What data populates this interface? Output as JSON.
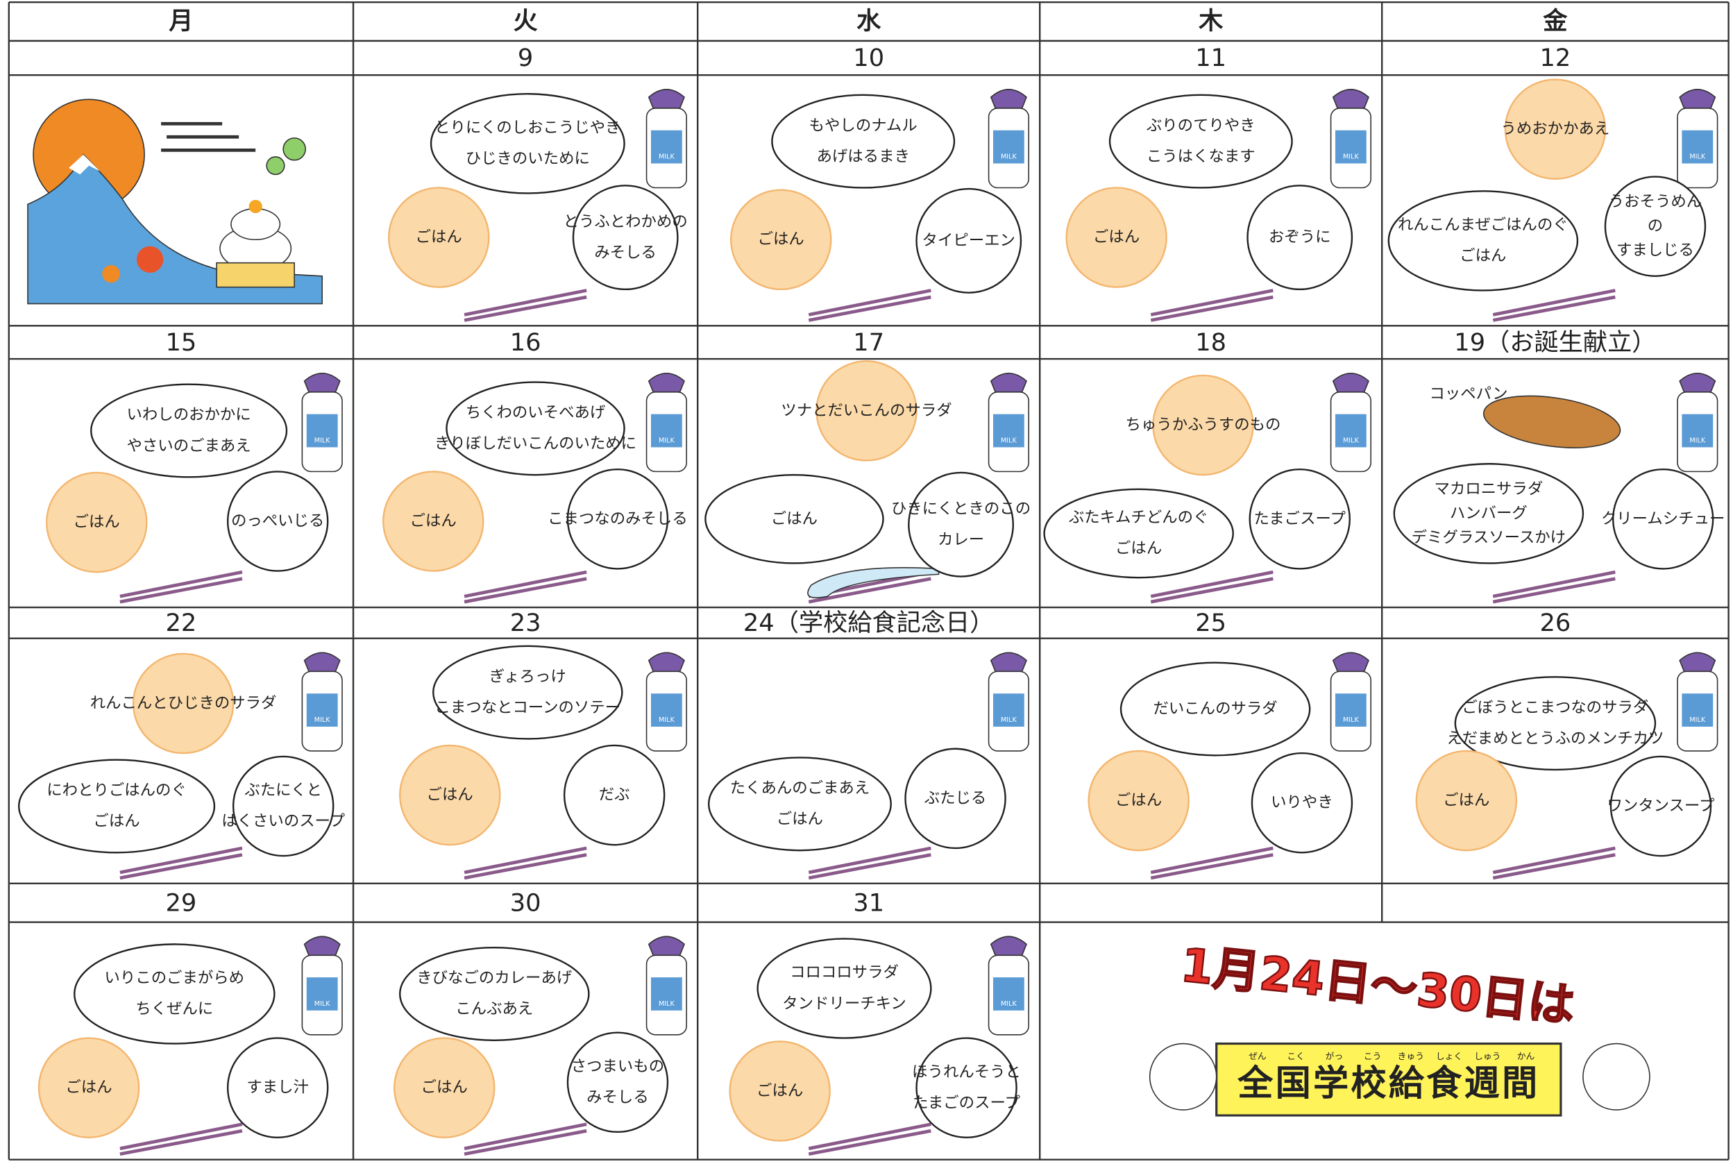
{
  "weekdays": [
    "月",
    "火",
    "水",
    "木",
    "金"
  ],
  "milk_label": "MILK",
  "weeks": [
    {
      "dates": [
        null,
        "9",
        "10",
        "11",
        "12"
      ],
      "cells": [
        null,
        {
          "items": [
            {
              "lines": [
                "とりにくのしおこうじやき",
                "ひじきのいために"
              ]
            },
            {
              "lines": [
                "ごはん"
              ]
            },
            {
              "lines": [
                "とうふとわかめの",
                "みそしる"
              ]
            }
          ]
        },
        {
          "items": [
            {
              "lines": [
                "もやしのナムル",
                "あげはるまき"
              ]
            },
            {
              "lines": [
                "ごはん"
              ]
            },
            {
              "lines": [
                "タイピーエン"
              ]
            }
          ]
        },
        {
          "items": [
            {
              "lines": [
                "ぶりのてりやき",
                "こうはくなます"
              ]
            },
            {
              "lines": [
                "ごはん"
              ]
            },
            {
              "lines": [
                "おぞうに"
              ]
            }
          ]
        },
        {
          "items": [
            {
              "lines": [
                "うめおかかあえ"
              ]
            },
            {
              "lines": [
                "れんこんまぜごはんのぐ",
                "ごはん"
              ]
            },
            {
              "lines": [
                "うおそうめん",
                "の",
                "すましじる"
              ]
            }
          ]
        }
      ]
    },
    {
      "dates": [
        "15",
        "16",
        "17",
        "18",
        "19（お誕生献立）"
      ],
      "cells": [
        {
          "items": [
            {
              "lines": [
                "いわしのおかかに",
                "やさいのごまあえ"
              ]
            },
            {
              "lines": [
                "ごはん"
              ]
            },
            {
              "lines": [
                "のっぺいじる"
              ]
            }
          ]
        },
        {
          "items": [
            {
              "lines": [
                "ちくわのいそべあげ",
                "きりぼしだいこんのいために"
              ]
            },
            {
              "lines": [
                "ごはん"
              ]
            },
            {
              "lines": [
                "こまつなのみそしる"
              ]
            }
          ]
        },
        {
          "items": [
            {
              "lines": [
                "ツナとだいこんのサラダ"
              ]
            },
            {
              "lines": [
                "ごはん"
              ]
            },
            {
              "lines": [
                "ひきにくときのこの",
                "カレー"
              ]
            }
          ]
        },
        {
          "items": [
            {
              "lines": [
                "ちゅうかふうすのもの"
              ]
            },
            {
              "lines": [
                "ぶたキムチどんのぐ",
                "ごはん"
              ]
            },
            {
              "lines": [
                "たまごスープ"
              ]
            }
          ]
        },
        {
          "items": [
            {
              "lines": [
                "コッペパン"
              ]
            },
            {
              "lines": [
                "マカロニサラダ",
                "ハンバーグ",
                "デミグラスソースかけ"
              ]
            },
            {
              "lines": [
                "クリームシチュー"
              ]
            }
          ]
        }
      ]
    },
    {
      "dates": [
        "22",
        "23",
        "24（学校給食記念日）",
        "25",
        "26"
      ],
      "cells": [
        {
          "items": [
            {
              "lines": [
                "れんこんとひじきのサラダ"
              ]
            },
            {
              "lines": [
                "にわとりごはんのぐ",
                "ごはん"
              ]
            },
            {
              "lines": [
                "ぶたにくと",
                "はくさいのスープ"
              ]
            }
          ]
        },
        {
          "items": [
            {
              "lines": [
                "ぎょろっけ",
                "こまつなとコーンのソテー"
              ]
            },
            {
              "lines": [
                "ごはん"
              ]
            },
            {
              "lines": [
                "だぶ"
              ]
            }
          ]
        },
        {
          "items": [
            {
              "lines": [
                "たくあんのごまあえ",
                "ごはん"
              ]
            },
            {
              "lines": [
                "ぶたじる"
              ]
            }
          ]
        },
        {
          "items": [
            {
              "lines": [
                "だいこんのサラダ"
              ]
            },
            {
              "lines": [
                "ごはん"
              ]
            },
            {
              "lines": [
                "いりやき"
              ]
            }
          ]
        },
        {
          "items": [
            {
              "lines": [
                "ごぼうとこまつなのサラダ",
                "えだまめととうふのメンチカツ"
              ]
            },
            {
              "lines": [
                "ごはん"
              ]
            },
            {
              "lines": [
                "ワンタンスープ"
              ]
            }
          ]
        }
      ]
    },
    {
      "dates": [
        "29",
        "30",
        "31",
        null,
        null
      ],
      "cells": [
        {
          "items": [
            {
              "lines": [
                "いりこのごまがらめ",
                "ちくぜんに"
              ]
            },
            {
              "lines": [
                "ごはん"
              ]
            },
            {
              "lines": [
                "すまし汁"
              ]
            }
          ]
        },
        {
          "items": [
            {
              "lines": [
                "きびなごのカレーあげ",
                "こんぶあえ"
              ]
            },
            {
              "lines": [
                "ごはん"
              ]
            },
            {
              "lines": [
                "さつまいもの",
                "みそしる"
              ]
            }
          ]
        },
        {
          "items": [
            {
              "lines": [
                "コロコロサラダ",
                "タンドリーチキン"
              ]
            },
            {
              "lines": [
                "ごはん"
              ]
            },
            {
              "lines": [
                "ほうれんそうと",
                "たまごのスープ"
              ]
            }
          ]
        },
        null,
        null
      ]
    }
  ],
  "banner": {
    "headline": "1月24日～30日は",
    "title": "全国学校給食週間",
    "ruby": [
      "ぜん",
      "こく",
      "がっ",
      "こう",
      "きゅう",
      "しょく",
      "しゅう",
      "かん"
    ]
  }
}
